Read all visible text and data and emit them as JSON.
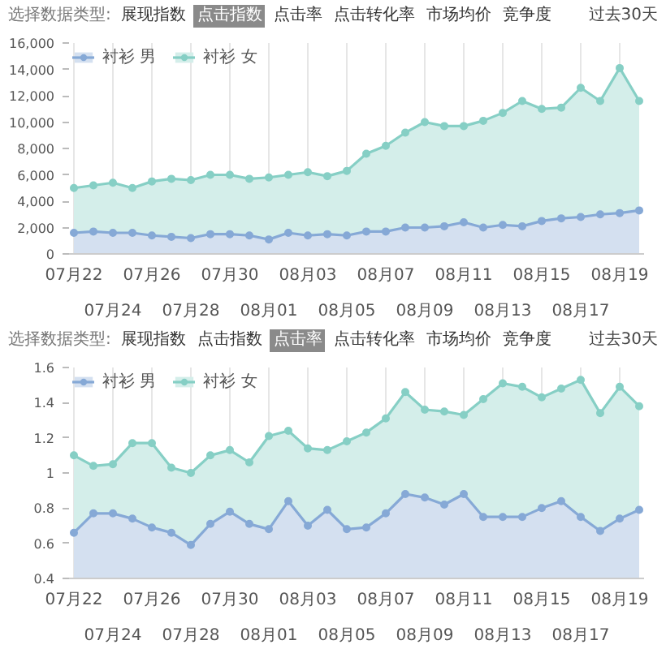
{
  "chart_data": [
    {
      "type": "area",
      "annotations": [
        "选择数据类型:",
        "展现指数",
        "点击指数",
        "点击率",
        "点击转化率",
        "市场均价",
        "竞争度",
        "过去30天"
      ],
      "categories": [
        "07月22",
        null,
        "07月24",
        null,
        "07月26",
        null,
        "07月28",
        null,
        "07月30",
        null,
        "08月01",
        null,
        "08月03",
        null,
        "08月05",
        null,
        "08月07",
        null,
        "08月09",
        null,
        "08月11",
        null,
        "08月13",
        null,
        "08月15",
        null,
        "08月17",
        null,
        "08月19",
        null
      ],
      "series": [
        {
          "name": "衬衫 男",
          "color": "#86a9d6",
          "values": [
            1600,
            1700,
            1600,
            1600,
            1400,
            1300,
            1200,
            1500,
            1500,
            1400,
            1100,
            1600,
            1400,
            1500,
            1400,
            1700,
            1700,
            2000,
            2000,
            2100,
            2400,
            2000,
            2200,
            2100,
            2500,
            2700,
            2800,
            3000,
            3100,
            3300
          ]
        },
        {
          "name": "衬衫 女",
          "color": "#86cfc5",
          "values": [
            5000,
            5200,
            5400,
            5000,
            5500,
            5700,
            5600,
            6000,
            6000,
            5700,
            5800,
            6000,
            6200,
            5900,
            6300,
            7600,
            8200,
            9200,
            10000,
            9700,
            9700,
            10100,
            10700,
            11600,
            11000,
            11100,
            12600,
            11600,
            14100,
            11600
          ]
        }
      ],
      "ylim": [
        0,
        16000
      ],
      "yticks": [
        0,
        {
          "value": 2000,
          "label": "2,000"
        },
        {
          "value": 4000,
          "label": "4,000"
        },
        {
          "value": 6000,
          "label": "6,000"
        },
        {
          "value": 8000,
          "label": "8,000"
        },
        {
          "value": 10000,
          "label": "10,000"
        },
        {
          "value": 12000,
          "label": "12,000"
        },
        {
          "value": 14000,
          "label": "14,000"
        },
        {
          "value": 16000,
          "label": "16,000"
        }
      ],
      "grid": "x",
      "legend": "top left",
      "marker": "circle"
    },
    {
      "type": "area",
      "annotations": [
        "选择数据类型:",
        "展现指数",
        "点击指数",
        "点击率",
        "点击转化率",
        "市场均价",
        "竞争度",
        "过去30天"
      ],
      "categories": [
        "07月22",
        null,
        "07月24",
        null,
        "07月26",
        null,
        "07月28",
        null,
        "07月30",
        null,
        "08月01",
        null,
        "08月03",
        null,
        "08月05",
        null,
        "08月07",
        null,
        "08月09",
        null,
        "08月11",
        null,
        "08月13",
        null,
        "08月15",
        null,
        "08月17",
        null,
        "08月19",
        null
      ],
      "series": [
        {
          "name": "衬衫 男",
          "color": "#86a9d6",
          "values": [
            0.66,
            0.77,
            0.77,
            0.74,
            0.69,
            0.66,
            0.59,
            0.71,
            0.78,
            0.71,
            0.68,
            0.84,
            0.7,
            0.79,
            0.68,
            0.69,
            0.77,
            0.88,
            0.86,
            0.82,
            0.88,
            0.75,
            0.75,
            0.75,
            0.8,
            0.84,
            0.75,
            0.67,
            0.74,
            0.79
          ]
        },
        {
          "name": "衬衫 女",
          "color": "#86cfc5",
          "values": [
            1.1,
            1.04,
            1.05,
            1.17,
            1.17,
            1.03,
            1.0,
            1.1,
            1.13,
            1.06,
            1.21,
            1.24,
            1.14,
            1.13,
            1.18,
            1.23,
            1.31,
            1.46,
            1.36,
            1.35,
            1.33,
            1.42,
            1.51,
            1.49,
            1.43,
            1.48,
            1.53,
            1.34,
            1.49,
            1.38
          ]
        }
      ],
      "ylim": [
        0.4,
        1.6
      ],
      "yticks": [
        0.4,
        0.6,
        0.8,
        1,
        1.2,
        1.4,
        1.6
      ],
      "grid": "x",
      "legend": "top left",
      "marker": "circle"
    }
  ]
}
